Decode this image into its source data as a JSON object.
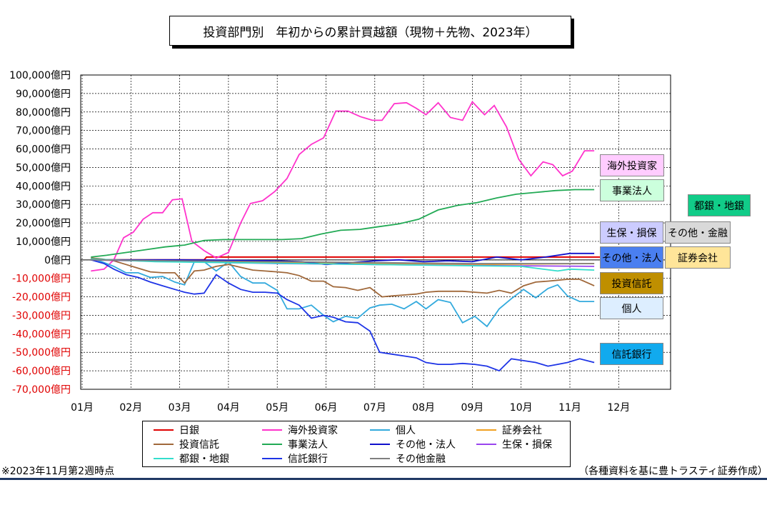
{
  "chart_data": {
    "type": "line",
    "title": "投資部門別　年初からの累計買越額（現物＋先物、2023年）",
    "ylim": [
      -70000,
      100000
    ],
    "y_ticks": [
      {
        "value": 100000,
        "label": "100,000億円"
      },
      {
        "value": 90000,
        "label": "90,000億円"
      },
      {
        "value": 80000,
        "label": "80,000億円"
      },
      {
        "value": 70000,
        "label": "70,000億円"
      },
      {
        "value": 60000,
        "label": "60,000億円"
      },
      {
        "value": 50000,
        "label": "50,000億円"
      },
      {
        "value": 40000,
        "label": "40,000億円"
      },
      {
        "value": 30000,
        "label": "30,000億円"
      },
      {
        "value": 20000,
        "label": "20,000億円"
      },
      {
        "value": 10000,
        "label": "10,000億円"
      },
      {
        "value": 0,
        "label": "0億円"
      },
      {
        "value": -10000,
        "label": "-10,000億円"
      },
      {
        "value": -20000,
        "label": "-20,000億円"
      },
      {
        "value": -30000,
        "label": "-30,000億円"
      },
      {
        "value": -40000,
        "label": "-40,000億円"
      },
      {
        "value": -50000,
        "label": "-50,000億円"
      },
      {
        "value": -60000,
        "label": "-60,000億円"
      },
      {
        "value": -70000,
        "label": "-70,000億円"
      }
    ],
    "x_ticks": [
      "01月",
      "02月",
      "03月",
      "04月",
      "05月",
      "06月",
      "07月",
      "08月",
      "09月",
      "10月",
      "11月",
      "12月"
    ],
    "xlim": [
      0,
      11
    ],
    "grid": true,
    "legend_position": "bottom",
    "series": [
      {
        "name": "日銀",
        "color": "#e00000",
        "end_tag": false,
        "x": [
          0.18,
          2.5,
          2.55,
          10.8
        ],
        "y": [
          0,
          0,
          1500,
          1500
        ]
      },
      {
        "name": "海外投資家",
        "color": "#ff33cc",
        "end_tag": true,
        "x": [
          0.18,
          0.45,
          0.65,
          0.85,
          1.05,
          1.25,
          1.45,
          1.65,
          1.85,
          2.05,
          2.25,
          2.5,
          2.75,
          3.0,
          3.25,
          3.45,
          3.7,
          3.95,
          4.2,
          4.45,
          4.7,
          4.95,
          5.2,
          5.45,
          5.7,
          5.95,
          6.15,
          6.4,
          6.65,
          6.85,
          7.05,
          7.3,
          7.55,
          7.8,
          8.0,
          8.25,
          8.45,
          8.7,
          8.95,
          9.2,
          9.45,
          9.65,
          9.85,
          10.05,
          10.3,
          10.5
        ],
        "y": [
          -6000,
          -5000,
          0,
          12000,
          15000,
          22000,
          25500,
          25500,
          32500,
          33000,
          10000,
          5000,
          1000,
          4000,
          20000,
          30500,
          32000,
          37000,
          44000,
          57000,
          62500,
          66000,
          80500,
          80500,
          77500,
          75500,
          75500,
          84500,
          85000,
          82000,
          78500,
          85000,
          77000,
          75500,
          85500,
          78500,
          83500,
          72000,
          54500,
          45500,
          53000,
          51500,
          45500,
          48000,
          59000,
          59000
        ]
      },
      {
        "name": "個人",
        "color": "#33aadd",
        "end_tag": true,
        "x": [
          0.18,
          0.4,
          0.65,
          0.9,
          1.15,
          1.4,
          1.65,
          1.9,
          2.1,
          2.3,
          2.5,
          2.75,
          3.0,
          3.25,
          3.5,
          3.75,
          4.0,
          4.2,
          4.45,
          4.7,
          4.95,
          5.15,
          5.4,
          5.65,
          5.9,
          6.1,
          6.35,
          6.6,
          6.85,
          7.05,
          7.3,
          7.55,
          7.8,
          8.05,
          8.3,
          8.55,
          8.8,
          9.05,
          9.3,
          9.55,
          9.75,
          9.95,
          10.2,
          10.5
        ],
        "y": [
          1000,
          -1000,
          -3500,
          -7000,
          -7000,
          -9500,
          -9000,
          -12000,
          -13500,
          -1000,
          -1000,
          -6000,
          -1000,
          -9000,
          -12500,
          -12500,
          -16500,
          -26500,
          -26500,
          -24500,
          -30000,
          -33500,
          -30500,
          -31500,
          -26000,
          -24500,
          -24000,
          -26500,
          -22500,
          -26500,
          -21500,
          -23000,
          -34000,
          -30500,
          -36000,
          -26500,
          -21000,
          -16000,
          -20500,
          -15500,
          -13500,
          -19500,
          -22500,
          -22500
        ]
      },
      {
        "name": "証券会社",
        "color": "#f0a020",
        "end_tag": false,
        "x": [
          0.18,
          2.0,
          4.0,
          6.0,
          8.0,
          10.5
        ],
        "y": [
          0,
          -1000,
          -1500,
          -2000,
          -2500,
          -2000
        ]
      },
      {
        "name": "投資信託",
        "color": "#a0683a",
        "end_tag": true,
        "x": [
          0.18,
          0.4,
          0.65,
          0.9,
          1.15,
          1.4,
          1.65,
          1.9,
          2.1,
          2.3,
          2.5,
          2.75,
          3.0,
          3.25,
          3.5,
          3.75,
          4.0,
          4.2,
          4.45,
          4.7,
          4.95,
          5.15,
          5.4,
          5.65,
          5.9,
          6.15,
          6.35,
          6.6,
          6.85,
          7.05,
          7.3,
          7.55,
          7.8,
          8.05,
          8.3,
          8.55,
          8.8,
          9.05,
          9.3,
          9.55,
          9.75,
          9.95,
          10.2,
          10.5
        ],
        "y": [
          1000,
          500,
          -500,
          -2500,
          -4500,
          -6500,
          -7000,
          -7000,
          -12500,
          -6000,
          -5500,
          -3500,
          -2500,
          -4000,
          -5500,
          -6000,
          -6500,
          -7000,
          -8500,
          -11500,
          -11500,
          -14500,
          -15000,
          -16500,
          -15000,
          -20000,
          -19500,
          -19000,
          -18500,
          -17500,
          -17000,
          -17000,
          -17000,
          -17500,
          -18000,
          -16500,
          -18000,
          -14000,
          -12000,
          -11500,
          -11000,
          -10500,
          -10500,
          -14000
        ]
      },
      {
        "name": "事業法人",
        "color": "#22aa55",
        "end_tag": true,
        "x": [
          0.18,
          0.5,
          0.9,
          1.3,
          1.7,
          2.1,
          2.5,
          2.9,
          3.3,
          3.7,
          4.1,
          4.5,
          4.9,
          5.3,
          5.7,
          6.1,
          6.5,
          6.9,
          7.3,
          7.7,
          8.1,
          8.5,
          8.9,
          9.3,
          9.7,
          10.1,
          10.5
        ],
        "y": [
          1500,
          2500,
          4000,
          5500,
          7000,
          8000,
          10500,
          11000,
          11000,
          11000,
          11000,
          11500,
          14000,
          16000,
          16500,
          18000,
          19500,
          22000,
          27000,
          29500,
          31000,
          33500,
          35500,
          36500,
          37500,
          38000,
          38000
        ]
      },
      {
        "name": "その他・法人",
        "color": "#1010cc",
        "end_tag": true,
        "x": [
          0.18,
          2.0,
          4.0,
          4.5,
          5.0,
          5.5,
          6.0,
          6.5,
          7.0,
          7.5,
          8.0,
          8.5,
          9.0,
          9.5,
          10.0,
          10.5
        ],
        "y": [
          0,
          0,
          -500,
          -1000,
          -2500,
          -1500,
          -500,
          0,
          -1000,
          -500,
          -1000,
          1500,
          0,
          1500,
          3500,
          3500
        ]
      },
      {
        "name": "生保・損保",
        "color": "#9944ee",
        "end_tag": true,
        "x": [
          0.18,
          2.0,
          4.0,
          6.0,
          8.0,
          10.5
        ],
        "y": [
          0,
          -1000,
          -2000,
          -2500,
          -3000,
          -3500
        ]
      },
      {
        "name": "都銀・地銀",
        "color": "#33ddcc",
        "end_tag": true,
        "x": [
          0.18,
          1.5,
          3.0,
          4.5,
          6.0,
          7.5,
          9.0,
          9.75,
          10.0,
          10.5
        ],
        "y": [
          500,
          -1000,
          -1500,
          -2000,
          -2500,
          -3000,
          -3500,
          -6000,
          -5000,
          -5500
        ]
      },
      {
        "name": "信託銀行",
        "color": "#1e34e6",
        "end_tag": true,
        "x": [
          0.18,
          0.45,
          0.65,
          0.9,
          1.15,
          1.4,
          1.65,
          1.9,
          2.1,
          2.3,
          2.5,
          2.75,
          3.0,
          3.25,
          3.5,
          3.75,
          4.0,
          4.2,
          4.45,
          4.7,
          4.95,
          5.15,
          5.4,
          5.65,
          5.9,
          6.1,
          6.35,
          6.6,
          6.85,
          7.05,
          7.3,
          7.55,
          7.8,
          8.05,
          8.3,
          8.55,
          8.8,
          9.05,
          9.3,
          9.55,
          9.75,
          9.95,
          10.2,
          10.5
        ],
        "y": [
          0,
          -2000,
          -5000,
          -8000,
          -9500,
          -12000,
          -14000,
          -16000,
          -17500,
          -18500,
          -18000,
          -8000,
          -12500,
          -16000,
          -17500,
          -17500,
          -18000,
          -21500,
          -24500,
          -31500,
          -30000,
          -31000,
          -33500,
          -34000,
          -38500,
          -50000,
          -51000,
          -52000,
          -53000,
          -55500,
          -56500,
          -56500,
          -56000,
          -56500,
          -57500,
          -60000,
          -53500,
          -54500,
          -55500,
          -57500,
          -56500,
          -55500,
          -53500,
          -55500
        ]
      },
      {
        "name": "その他金融",
        "color": "#7f7f7f",
        "end_tag": true,
        "x": [
          0.18,
          2.0,
          4.0,
          6.0,
          8.0,
          10.5
        ],
        "y": [
          0,
          -500,
          -1000,
          -1500,
          -2000,
          -2000
        ]
      }
    ],
    "end_tags": [
      {
        "label": "海外投資家",
        "bg": "#ffccff"
      },
      {
        "label": "事業法人",
        "bg": "#ccffdd"
      },
      {
        "label": "都銀・地銀",
        "bg": "#11cc88"
      },
      {
        "label": "生保・損保",
        "bg": "#ccccff"
      },
      {
        "label": "その他・金融",
        "bg": "#d9d9d9"
      },
      {
        "label": "その他・法人",
        "bg": "#4a7ff0"
      },
      {
        "label": "証券会社",
        "bg": "#ffe599"
      },
      {
        "label": "投資信託",
        "bg": "#bf8f00"
      },
      {
        "label": "個人",
        "bg": "#ddeeff"
      },
      {
        "label": "信託銀行",
        "bg": "#11aaee"
      }
    ]
  },
  "legend": [
    {
      "label": "日銀",
      "color": "#e00000"
    },
    {
      "label": "海外投資家",
      "color": "#ff33cc"
    },
    {
      "label": "個人",
      "color": "#33aadd"
    },
    {
      "label": "証券会社",
      "color": "#f0a020"
    },
    {
      "label": "投資信託",
      "color": "#a0683a"
    },
    {
      "label": "事業法人",
      "color": "#22aa55"
    },
    {
      "label": "その他・法人",
      "color": "#1010cc"
    },
    {
      "label": "生保・損保",
      "color": "#9944ee"
    },
    {
      "label": "都銀・地銀",
      "color": "#33ddcc"
    },
    {
      "label": "信託銀行",
      "color": "#1e34e6"
    },
    {
      "label": "その他金融",
      "color": "#7f7f7f"
    }
  ],
  "footnote": "※2023年11月第2週時点",
  "source": "（各種資料を基に豊トラスティ証券作成）"
}
